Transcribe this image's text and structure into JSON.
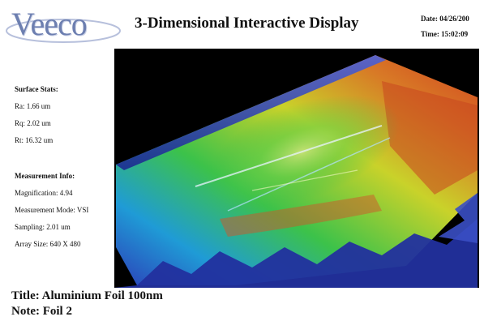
{
  "header": {
    "logo": "Veeco",
    "title": "3-Dimensional Interactive Display",
    "date": "Date: 04/26/200",
    "time": "Time: 15:02:09"
  },
  "surface_stats": {
    "heading": "Surface Stats:",
    "ra": "Ra: 1.66 um",
    "rq": "Rq: 2.02 um",
    "rt": "Rt: 16.32 um"
  },
  "measurement_info": {
    "heading": "Measurement Info:",
    "magnification": "Magnification: 4.94",
    "mode": "Measurement Mode: VSI",
    "sampling": "Sampling: 2.01 um",
    "array_size": "Array Size: 640 X 480"
  },
  "footer": {
    "title": "Title: Aluminium Foil 100nm",
    "note": "Note: Foil 2"
  },
  "colors": {
    "plot_background": "#000000",
    "low": "#2c3fb8",
    "mid_low": "#1f9bd6",
    "mid": "#3cc24a",
    "mid_high": "#c9d22a",
    "high": "#d2401f"
  }
}
